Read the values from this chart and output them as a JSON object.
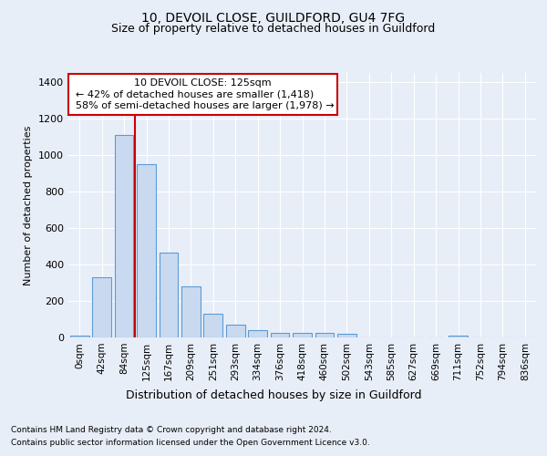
{
  "title1": "10, DEVOIL CLOSE, GUILDFORD, GU4 7FG",
  "title2": "Size of property relative to detached houses in Guildford",
  "xlabel": "Distribution of detached houses by size in Guildford",
  "ylabel": "Number of detached properties",
  "footer1": "Contains HM Land Registry data © Crown copyright and database right 2024.",
  "footer2": "Contains public sector information licensed under the Open Government Licence v3.0.",
  "annotation_line1": "10 DEVOIL CLOSE: 125sqm",
  "annotation_line2": "← 42% of detached houses are smaller (1,418)",
  "annotation_line3": "58% of semi-detached houses are larger (1,978) →",
  "bar_labels": [
    "0sqm",
    "42sqm",
    "84sqm",
    "125sqm",
    "167sqm",
    "209sqm",
    "251sqm",
    "293sqm",
    "334sqm",
    "376sqm",
    "418sqm",
    "460sqm",
    "502sqm",
    "543sqm",
    "585sqm",
    "627sqm",
    "669sqm",
    "711sqm",
    "752sqm",
    "794sqm",
    "836sqm"
  ],
  "bar_values": [
    10,
    330,
    1110,
    950,
    465,
    280,
    130,
    70,
    40,
    25,
    25,
    25,
    20,
    0,
    0,
    0,
    0,
    10,
    0,
    0,
    0
  ],
  "bar_color": "#c9daf0",
  "bar_edge_color": "#5b9bd5",
  "red_line_color": "#cc0000",
  "red_line_x": 2.5,
  "ylim": [
    0,
    1450
  ],
  "yticks": [
    0,
    200,
    400,
    600,
    800,
    1000,
    1200,
    1400
  ],
  "bg_color": "#e8eef8",
  "plot_bg_color": "#e8eef8",
  "grid_color": "#ffffff",
  "annotation_box_facecolor": "#ffffff",
  "annotation_box_edgecolor": "#cc0000",
  "title1_fontsize": 10,
  "title2_fontsize": 9,
  "ylabel_fontsize": 8,
  "xlabel_fontsize": 9,
  "tick_fontsize": 7.5,
  "footer_fontsize": 6.5,
  "annot_fontsize": 8
}
